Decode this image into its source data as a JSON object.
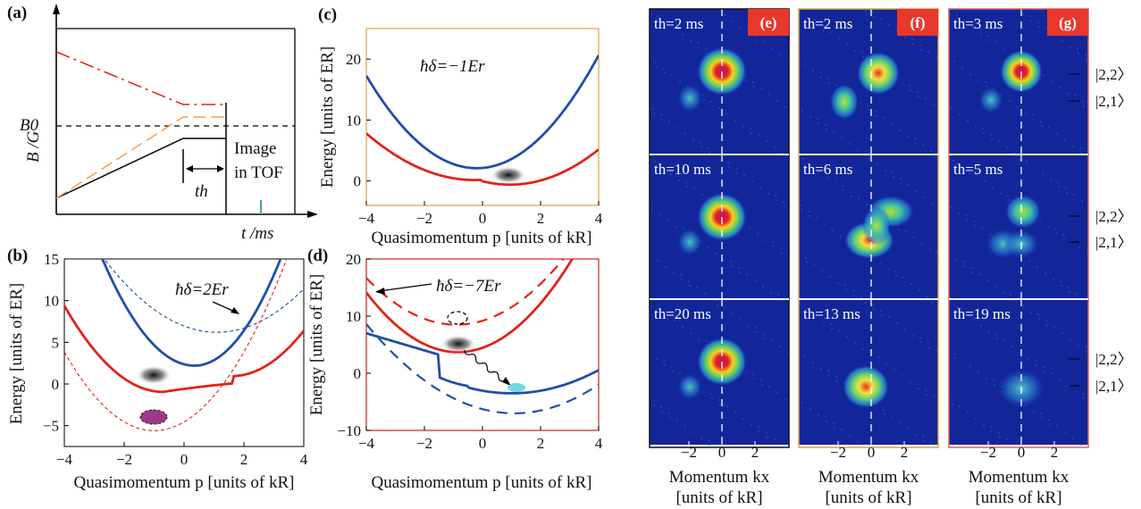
{
  "colors": {
    "red": "#e2231a",
    "blue": "#1f4fa8",
    "orange": "#f0a050",
    "badge": "#e8382e",
    "image_bg": "#12269a",
    "frame_e": "#111111",
    "frame_f": "#e0a040",
    "frame_g": "#e06060",
    "frame_c": "#e0a040",
    "frame_d": "#cc2222"
  },
  "panel_a": {
    "label": "(a)",
    "ylabel": "B /G",
    "xlabel": "t /ms",
    "b0": "B0",
    "th": "th",
    "image_text": [
      "Image",
      "in TOF"
    ]
  },
  "panel_b": {
    "label": "(b)",
    "xlabel": "Quasimomentum p [units of kR]",
    "ylabel": "Energy [units of ER]",
    "annotation": "ħδ=2Er",
    "yticks": [
      "15",
      "10",
      "5",
      "0",
      "−5"
    ],
    "xticks": [
      "−4",
      "−2",
      "0",
      "2",
      "4"
    ]
  },
  "panel_c": {
    "label": "(c)",
    "xlabel": "Quasimomentum p [units of kR]",
    "ylabel": "Energy [units of ER]",
    "annotation": "ħδ=−1Er",
    "yticks": [
      "20",
      "10",
      "0"
    ],
    "xticks": [
      "−4",
      "−2",
      "0",
      "2",
      "4"
    ]
  },
  "panel_d": {
    "label": "(d)",
    "xlabel": "Quasimomentum p [units of kR]",
    "ylabel": "Energy [units of ER]",
    "annotation": "ħδ=−7Er",
    "yticks": [
      "20",
      "10",
      "0",
      "−10"
    ],
    "xticks": [
      "−4",
      "−2",
      "0",
      "2",
      "4"
    ]
  },
  "images": {
    "badges": [
      "(e)",
      "(f)",
      "(g)"
    ],
    "xticks": [
      "−2",
      "0",
      "2"
    ],
    "xlabel_line1": "Momentum kx",
    "xlabel_line2": "[units of kR]",
    "states": [
      "|2,2〉",
      "|2,1〉"
    ],
    "columns": [
      {
        "times": [
          "th=2 ms",
          "th=10 ms",
          "th=20 ms"
        ]
      },
      {
        "times": [
          "th=2 ms",
          "th=6 ms",
          "th=13 ms"
        ]
      },
      {
        "times": [
          "th=3 ms",
          "th=5 ms",
          "th=19 ms"
        ]
      }
    ]
  }
}
